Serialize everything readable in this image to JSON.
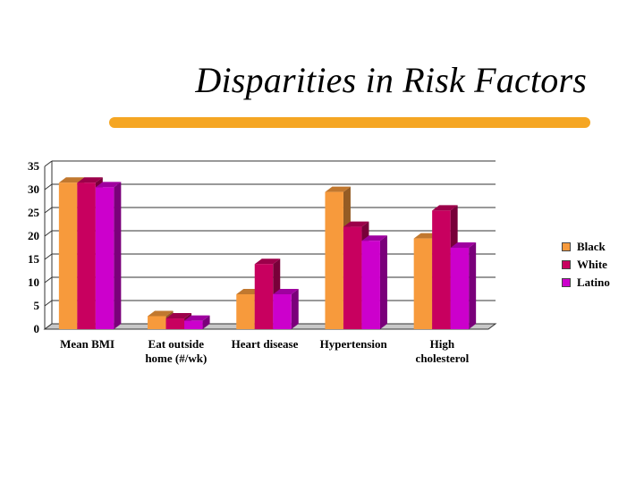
{
  "slide": {
    "title": "Disparities in Risk Factors",
    "rule_color": "#f5a623"
  },
  "chart_data": {
    "type": "bar",
    "title": "",
    "xlabel": "",
    "ylabel": "",
    "ylim": [
      0,
      35
    ],
    "yticks": [
      "0",
      "5",
      "10",
      "15",
      "20",
      "25",
      "30",
      "35"
    ],
    "grid": true,
    "legend_position": "right",
    "categories": [
      [
        "Mean BMI"
      ],
      [
        "Eat outside",
        "home (#/wk)"
      ],
      [
        "Heart disease"
      ],
      [
        "Hypertension"
      ],
      [
        "High",
        "cholesterol"
      ]
    ],
    "series": [
      {
        "name": "Black",
        "color": "#f79a3c",
        "values": [
          31.5,
          2.8,
          7.5,
          29.5,
          19.5
        ]
      },
      {
        "name": "White",
        "color": "#c8005f",
        "values": [
          31.5,
          2.3,
          14,
          22,
          25.5
        ]
      },
      {
        "name": "Latino",
        "color": "#cc00cc",
        "values": [
          30.5,
          1.8,
          7.5,
          19,
          17.5
        ]
      }
    ]
  }
}
